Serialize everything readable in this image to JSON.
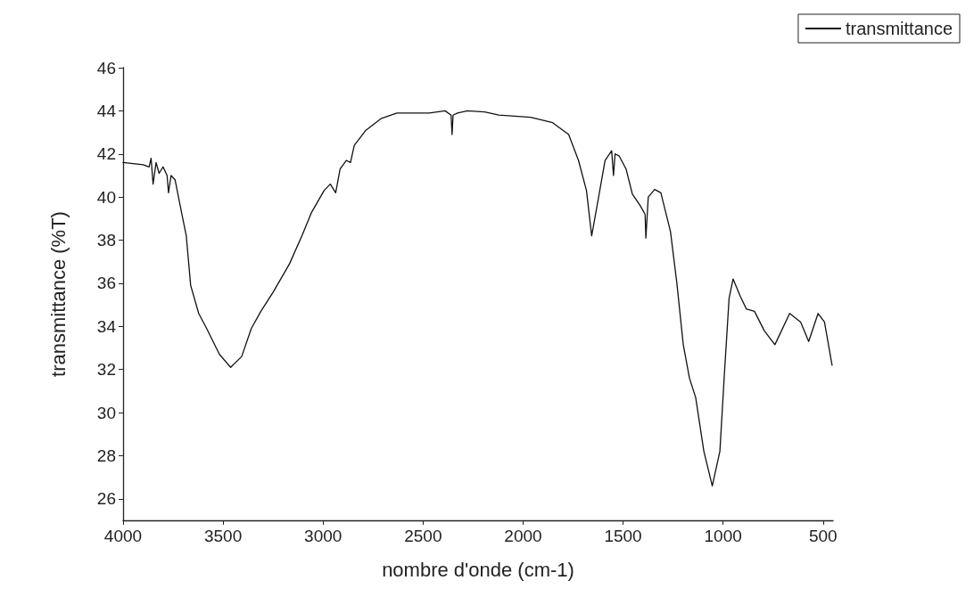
{
  "chart_data": {
    "type": "line",
    "xlabel": "nombre d'onde (cm-1)",
    "ylabel": "transmittance (%T)",
    "xlim": [
      4000,
      450
    ],
    "xticks": [
      4000,
      3500,
      3000,
      2500,
      2000,
      1500,
      1000,
      500
    ],
    "ylim": [
      25,
      46
    ],
    "yticks": [
      26,
      28,
      30,
      32,
      34,
      36,
      38,
      40,
      42,
      44,
      46
    ],
    "legend": "top right",
    "marker": "none",
    "line_style": "solid",
    "series": [
      {
        "name": "transmittance",
        "color": "#111111",
        "x": [
          4000,
          3950,
          3900,
          3870,
          3860,
          3850,
          3835,
          3820,
          3800,
          3780,
          3773,
          3760,
          3740,
          3708,
          3684,
          3662,
          3622,
          3582,
          3518,
          3462,
          3407,
          3359,
          3311,
          3249,
          3168,
          3106,
          3057,
          2995,
          2964,
          2937,
          2915,
          2884,
          2863,
          2844,
          2786,
          2708,
          2631,
          2470,
          2390,
          2360,
          2355,
          2350,
          2328,
          2279,
          2192,
          2121,
          1962,
          1852,
          1772,
          1723,
          1683,
          1657,
          1630,
          1590,
          1557,
          1548,
          1540,
          1519,
          1485,
          1454,
          1414,
          1390,
          1386,
          1374,
          1342,
          1311,
          1263,
          1231,
          1199,
          1168,
          1137,
          1096,
          1054,
          1016,
          994,
          970,
          950,
          914,
          883,
          843,
          794,
          741,
          667,
          612,
          572,
          525,
          493,
          455
        ],
        "values": [
          41.6,
          41.55,
          41.5,
          41.4,
          41.8,
          40.6,
          41.6,
          41.1,
          41.4,
          41.0,
          40.2,
          41.0,
          40.8,
          39.3,
          38.2,
          35.9,
          34.6,
          33.9,
          32.7,
          32.1,
          32.6,
          33.9,
          34.7,
          35.6,
          36.9,
          38.2,
          39.3,
          40.3,
          40.6,
          40.2,
          41.3,
          41.7,
          41.6,
          42.4,
          43.1,
          43.65,
          43.9,
          43.9,
          44.0,
          43.8,
          42.9,
          43.8,
          43.9,
          44.0,
          43.95,
          43.8,
          43.7,
          43.45,
          42.9,
          41.7,
          40.3,
          38.2,
          39.6,
          41.7,
          42.15,
          41.0,
          42.0,
          41.9,
          41.3,
          40.15,
          39.6,
          39.2,
          38.1,
          40.0,
          40.35,
          40.2,
          38.4,
          36.0,
          33.15,
          31.6,
          30.7,
          28.2,
          26.6,
          28.2,
          31.7,
          35.3,
          36.2,
          35.4,
          34.8,
          34.7,
          33.8,
          33.15,
          34.6,
          34.2,
          33.3,
          34.6,
          34.2,
          32.2
        ]
      }
    ]
  }
}
